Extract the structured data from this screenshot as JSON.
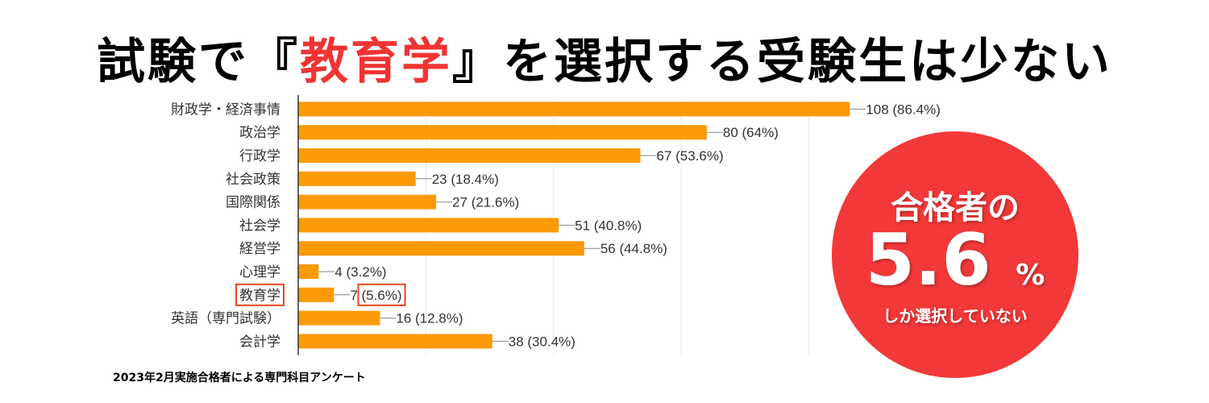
{
  "title": {
    "before": "試験で『",
    "highlight": "教育学",
    "after": "』を選択する受験生は少ない"
  },
  "badge": {
    "line1": "合格者の",
    "number": "5.6",
    "unit": "%",
    "line3": "しか選択していない"
  },
  "footnote": "2023年2月実施合格者による専門科目アンケート",
  "colors": {
    "bar": "#fb9a05",
    "highlight_box": "#e8451c",
    "title_highlight": "#f03434",
    "badge": "#f23838"
  },
  "chart_data": {
    "type": "bar",
    "orientation": "horizontal",
    "categories": [
      "財政学・経済事情",
      "政治学",
      "行政学",
      "社会政策",
      "国際関係",
      "社会学",
      "経営学",
      "心理学",
      "教育学",
      "英語（専門試験）",
      "会計学"
    ],
    "values": [
      108,
      80,
      67,
      23,
      27,
      51,
      56,
      4,
      7,
      16,
      38
    ],
    "labels": [
      "108 (86.4%)",
      "80 (64%)",
      "67 (53.6%)",
      "23 (18.4%)",
      "27 (21.6%)",
      "51 (40.8%)",
      "56 (44.8%)",
      "4 (3.2%)",
      "7 (5.6%)",
      "16 (12.8%)",
      "38 (30.4%)"
    ],
    "highlighted_category": "教育学",
    "xlim": [
      0,
      125
    ],
    "grid": true
  }
}
